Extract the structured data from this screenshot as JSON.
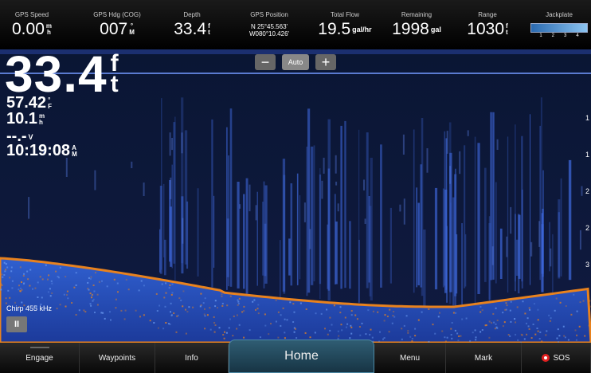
{
  "top_bar": {
    "fields": [
      {
        "label": "GPS Speed",
        "value": "0.00",
        "unit_top": "m",
        "unit_bottom": "h"
      },
      {
        "label": "GPS Hdg (COG)",
        "value": "007",
        "unit_top": "°",
        "unit_bottom": "M"
      },
      {
        "label": "Depth",
        "value": "33.4",
        "unit_top": "f",
        "unit_bottom": "t"
      },
      {
        "label": "GPS Position",
        "lat": "N  25°45.563'",
        "lon": "W080°10.426'"
      },
      {
        "label": "Total Flow",
        "value": "19.5",
        "unit": "gal/hr"
      },
      {
        "label": "Remaining",
        "value": "1998",
        "unit": "gal"
      },
      {
        "label": "Range",
        "value": "1030",
        "unit_top": "f",
        "unit_bottom": "t"
      },
      {
        "label": "Jackplate",
        "ticks": [
          "1",
          "2",
          "3",
          "4"
        ]
      }
    ]
  },
  "sonar": {
    "depth": {
      "value": "33.4",
      "unit_top": "f",
      "unit_bottom": "t"
    },
    "temperature": {
      "value": "57.42",
      "unit_top": "°",
      "unit_bottom": "F"
    },
    "speed": {
      "value": "10.1",
      "unit_top": "m",
      "unit_bottom": "h"
    },
    "voltage": {
      "value": "--.-",
      "unit": "V"
    },
    "time": {
      "value": "10:19:08",
      "unit_top": "A",
      "unit_bottom": "M"
    },
    "zoom": {
      "minus": "−",
      "auto": "Auto",
      "plus": "+"
    },
    "frequency": "Chirp 455 kHz",
    "pause": "II",
    "scale": [
      "1",
      "1",
      "2",
      "2",
      "3"
    ]
  },
  "bottom_bar": {
    "tabs": [
      "Engage",
      "Waypoints",
      "Info",
      "Home",
      "Menu",
      "Mark",
      "SOS"
    ]
  }
}
